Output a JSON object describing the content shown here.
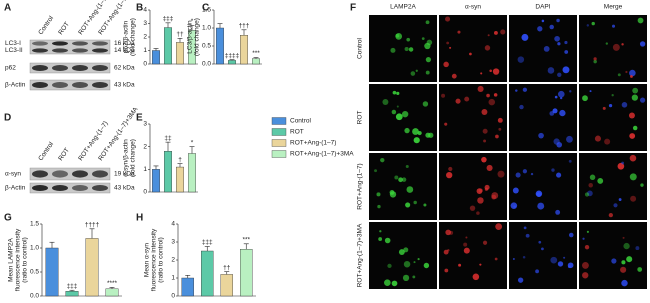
{
  "panel_labels": [
    "A",
    "B",
    "C",
    "D",
    "E",
    "F",
    "G",
    "H"
  ],
  "legend": [
    {
      "label": "Control",
      "color": "#4a8fdc"
    },
    {
      "label": "ROT",
      "color": "#5cc9a7"
    },
    {
      "label": "ROT+Ang-(1–7)",
      "color": "#ead59b"
    },
    {
      "label": "ROT+Ang-(1–7)+3MA",
      "color": "#b9f0c1"
    }
  ],
  "blots": [
    {
      "lanes": [
        "Control",
        "ROT",
        "ROT+Ang-(1–7)",
        "ROT+Ang-(1–7)+3MA"
      ],
      "rows": [
        {
          "labels": [
            "LC3-I",
            "LC3-II"
          ],
          "kda": [
            "16 kDa",
            "14 kDa"
          ]
        },
        {
          "labels": [
            "p62"
          ],
          "kda": [
            "62 kDa"
          ]
        },
        {
          "labels": [
            "β-Actin"
          ],
          "kda": [
            "43 kDa"
          ]
        }
      ]
    },
    {
      "lanes": [
        "Control",
        "ROT",
        "ROT+Ang-(1–7)",
        "ROT+Ang-(1–7)+3MA"
      ],
      "rows": [
        {
          "labels": [
            "α-syn"
          ],
          "kda": [
            "19 kDa"
          ]
        },
        {
          "labels": [
            "β-Actin"
          ],
          "kda": [
            "43 kDa"
          ]
        }
      ]
    }
  ],
  "microscopy": {
    "columns": [
      "LAMP2A",
      "α-syn",
      "DAPI",
      "Merge"
    ],
    "rows": [
      "Control",
      "ROT",
      "ROT+Ang-(1–7)",
      "ROT+Ang-(1–7)+3MA"
    ]
  },
  "chart_data": [
    {
      "type": "bar",
      "ylabel": [
        "p62/β-actin",
        "(fold change)"
      ],
      "values": [
        1.0,
        2.7,
        1.6,
        2.5
      ],
      "errors": [
        0.15,
        0.35,
        0.3,
        0.35
      ],
      "annotations": [
        null,
        "‡‡‡",
        "††",
        "*"
      ],
      "ylim": [
        0,
        4
      ],
      "yticks": [
        0,
        1,
        2,
        3,
        4
      ]
    },
    {
      "type": "bar",
      "ylabel": [
        "LC3/β-actin",
        "(fold change)"
      ],
      "values": [
        1.0,
        0.1,
        0.8,
        0.15
      ],
      "errors": [
        0.12,
        0.02,
        0.15,
        0.03
      ],
      "annotations": [
        null,
        "‡‡‡‡",
        "†††",
        "***"
      ],
      "ylim": [
        0,
        1.5
      ],
      "yticks": [
        {
          "value": 0,
          "label": "0.0"
        },
        {
          "value": 0.5,
          "label": "0.5"
        },
        {
          "value": 1,
          "label": "1.0"
        },
        {
          "value": 1.5,
          "label": "1.5"
        }
      ]
    },
    {
      "type": "bar",
      "ylabel": [
        "α-syn/β-actin",
        "(fold change)"
      ],
      "values": [
        1.0,
        1.8,
        1.1,
        1.7
      ],
      "errors": [
        0.15,
        0.4,
        0.15,
        0.3
      ],
      "annotations": [
        null,
        "‡‡",
        "†",
        "*"
      ],
      "ylim": [
        0,
        3
      ],
      "yticks": [
        0,
        1,
        2,
        3
      ]
    },
    {
      "type": "bar",
      "ylabel": [
        "Mean LAMP2A",
        "fluorescence intensity",
        "(ratio to control)"
      ],
      "values": [
        1.0,
        0.1,
        1.2,
        0.15
      ],
      "errors": [
        0.12,
        0.02,
        0.2,
        0.03
      ],
      "annotations": [
        null,
        "‡‡‡",
        "††††",
        "****"
      ],
      "ylim": [
        0,
        1.5
      ],
      "yticks": [
        {
          "value": 0,
          "label": "0.0"
        },
        {
          "value": 0.5,
          "label": "0.5"
        },
        {
          "value": 1,
          "label": "1.0"
        },
        {
          "value": 1.5,
          "label": "1.5"
        }
      ]
    },
    {
      "type": "bar",
      "ylabel": [
        "Mean α-syn",
        "fluorescence intensity",
        "(ratio to control)"
      ],
      "values": [
        1.0,
        2.5,
        1.2,
        2.6
      ],
      "errors": [
        0.15,
        0.25,
        0.15,
        0.3
      ],
      "annotations": [
        null,
        "‡‡‡",
        "††",
        "***"
      ],
      "ylim": [
        0,
        4
      ],
      "yticks": [
        0,
        1,
        2,
        3,
        4
      ]
    }
  ]
}
